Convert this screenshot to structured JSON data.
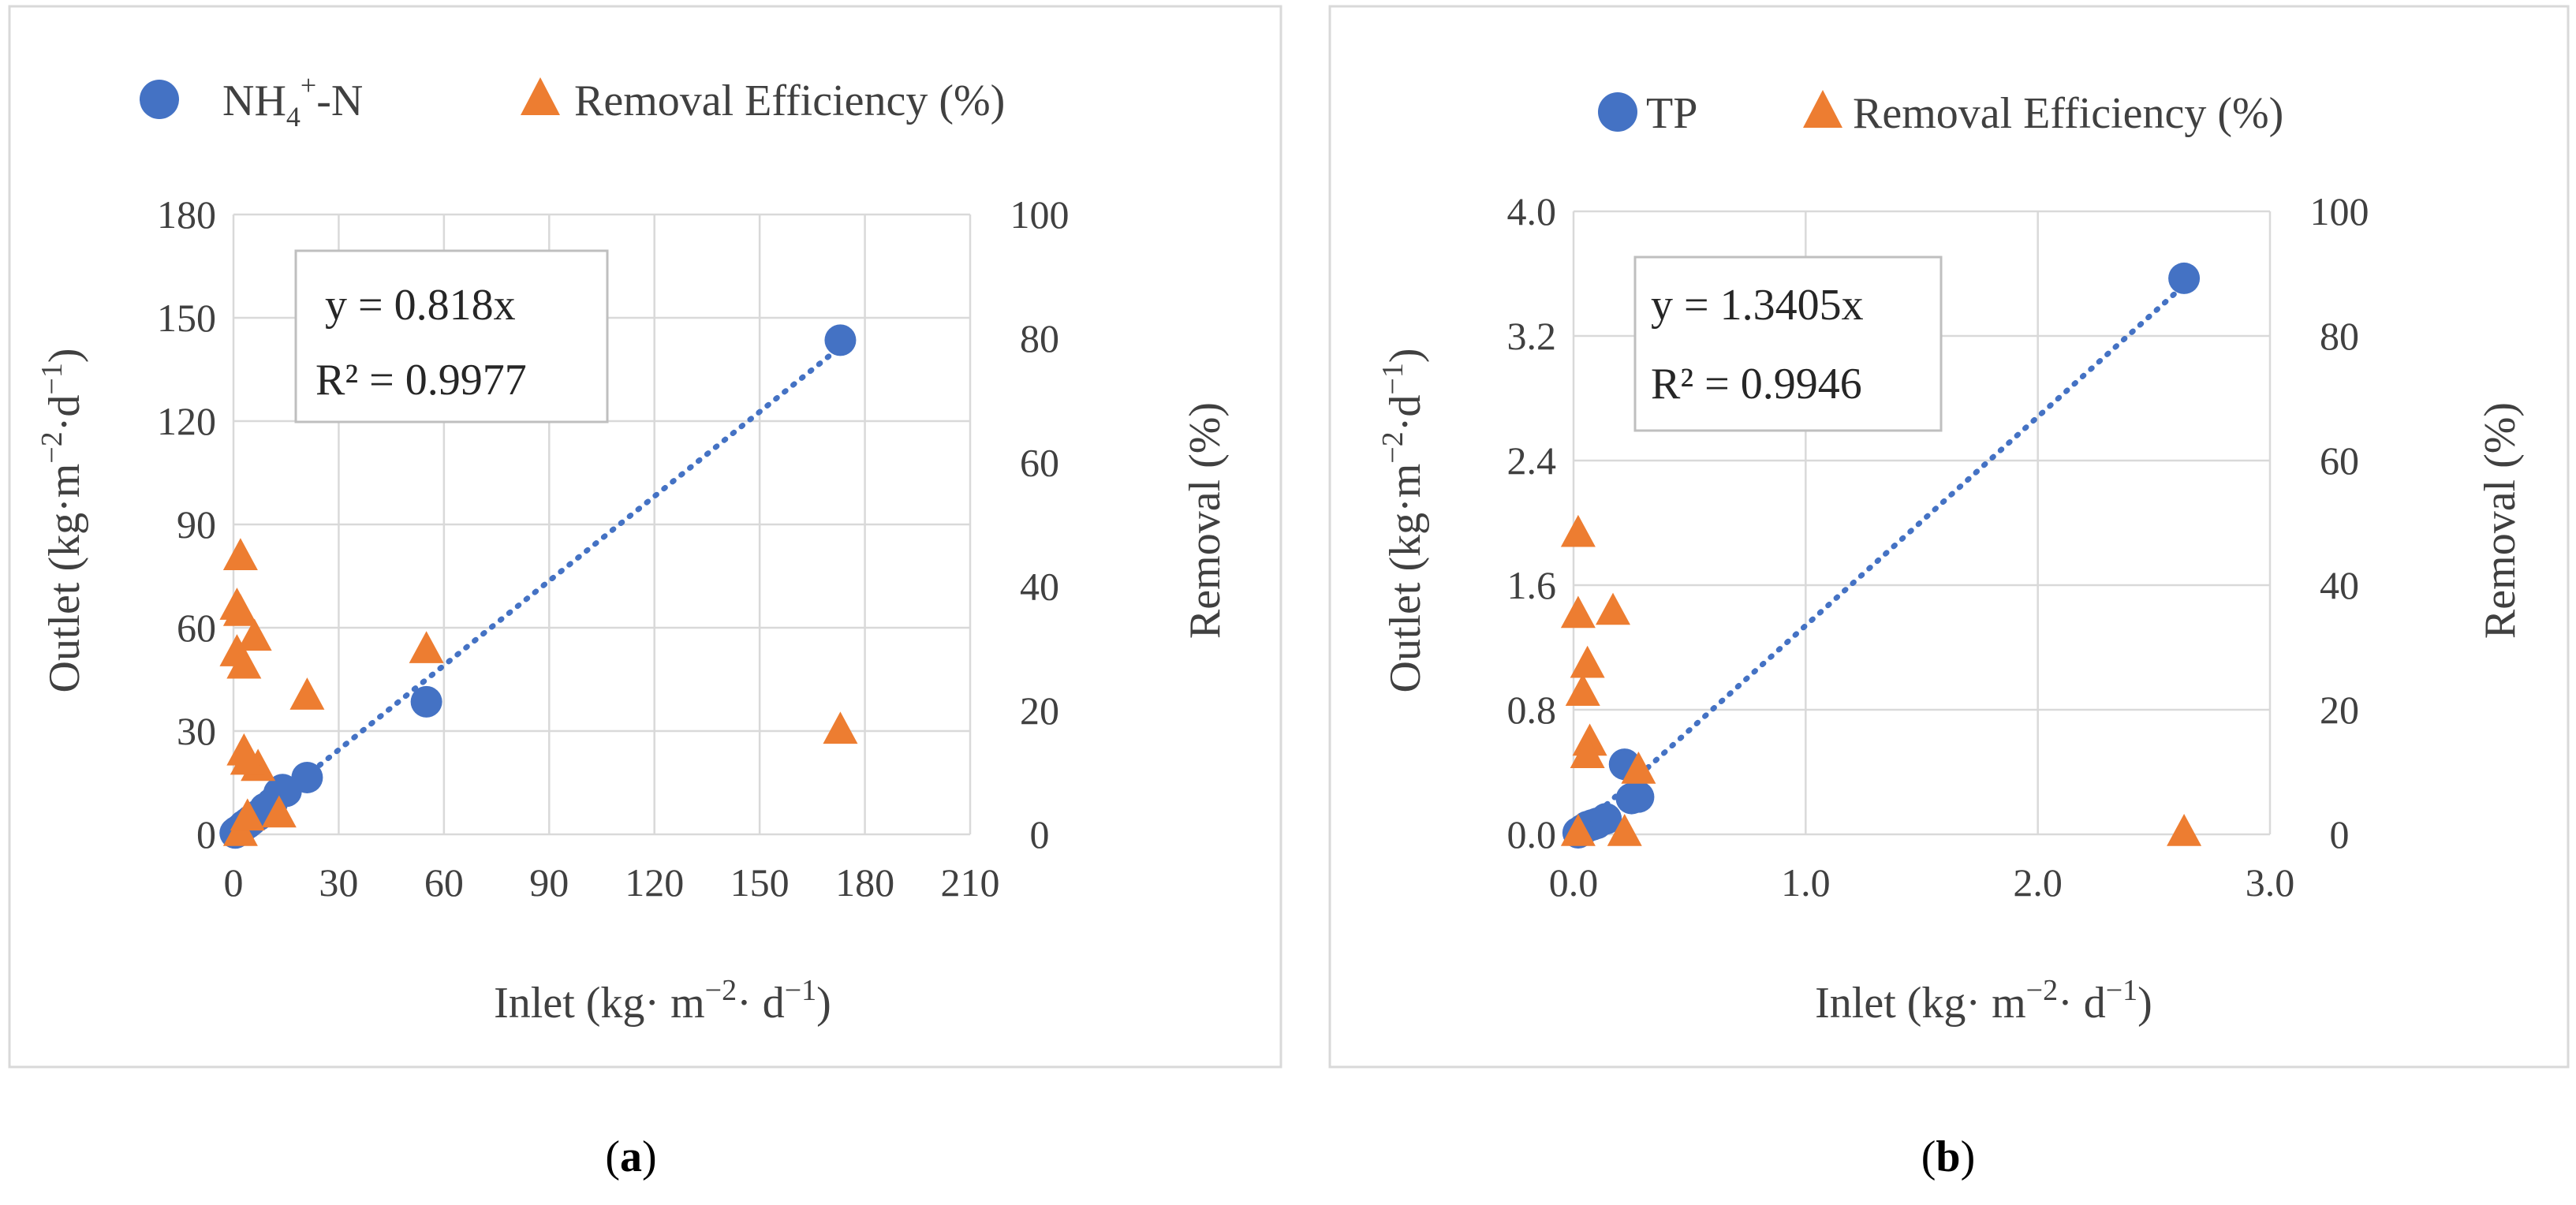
{
  "chart_data": [
    {
      "panel": "a",
      "type": "scatter",
      "caption": {
        "open": "(",
        "letter": "a",
        "close": ")"
      },
      "legend": {
        "series1": {
          "base": "NH",
          "sub": "4",
          "sup": "+",
          "tail": "-N"
        },
        "series2": "Removal Efficiency (%)"
      },
      "colors": {
        "series1": "#4472C4",
        "series2": "#ED7D31",
        "trend": "#4472C4"
      },
      "xlabel": {
        "pre": "Inlet (kg· m",
        "sup1": "−2",
        "mid": "· d",
        "sup2": "−1",
        "post": ")"
      },
      "ylabel": {
        "pre": "Outlet (kg·m",
        "sup1": "−2",
        "mid": "·d",
        "sup2": "−1",
        "post": ")"
      },
      "y2label": "Removal (%)",
      "xlim": [
        0,
        210
      ],
      "ylim": [
        0,
        180
      ],
      "y2lim": [
        0,
        100
      ],
      "xticks": [
        "0",
        "30",
        "60",
        "90",
        "120",
        "150",
        "180",
        "210"
      ],
      "yticks": [
        "0",
        "30",
        "60",
        "90",
        "120",
        "150",
        "180"
      ],
      "y2ticks": [
        "0",
        "20",
        "40",
        "60",
        "80",
        "100"
      ],
      "equation": "y = 0.818x",
      "r2": "R² = 0.9977",
      "trend_slope": 0.818,
      "series": [
        {
          "name": "NH4+-N",
          "axis": "left",
          "marker": "circle",
          "points": [
            [
              0.5,
              0.4
            ],
            [
              1,
              0.8
            ],
            [
              2,
              1.5
            ],
            [
              3,
              2.5
            ],
            [
              4,
              3.2
            ],
            [
              5,
              4
            ],
            [
              7,
              5.5
            ],
            [
              9,
              7.5
            ],
            [
              11,
              9
            ],
            [
              13,
              12
            ],
            [
              14,
              13
            ],
            [
              15,
              12.5
            ],
            [
              21,
              16.5
            ],
            [
              55,
              38.5
            ],
            [
              173,
              143.5
            ]
          ]
        },
        {
          "name": "Removal Efficiency (%)",
          "axis": "right",
          "marker": "triangle",
          "points": [
            [
              2,
              45
            ],
            [
              1,
              37
            ],
            [
              2,
              36
            ],
            [
              1,
              29.5
            ],
            [
              3,
              27.5
            ],
            [
              6,
              32
            ],
            [
              7,
              11
            ],
            [
              3,
              13.5
            ],
            [
              4,
              12
            ],
            [
              2,
              0.5
            ],
            [
              4,
              3
            ],
            [
              13,
              3.5
            ],
            [
              21,
              22.5
            ],
            [
              55,
              30
            ],
            [
              173,
              17
            ]
          ]
        }
      ]
    },
    {
      "panel": "b",
      "type": "scatter",
      "caption": {
        "open": "(",
        "letter": "b",
        "close": ")"
      },
      "legend": {
        "series1": "TP",
        "series2": "Removal Efficiency (%)"
      },
      "colors": {
        "series1": "#4472C4",
        "series2": "#ED7D31",
        "trend": "#4472C4"
      },
      "xlabel": {
        "pre": "Inlet (kg· m",
        "sup1": "−2",
        "mid": "· d",
        "sup2": "−1",
        "post": ")"
      },
      "ylabel": {
        "pre": "Outlet  (kg·m",
        "sup1": "−2",
        "mid": "·d",
        "sup2": "−1",
        "post": ")"
      },
      "y2label": "Removal (%)",
      "xlim": [
        0,
        3.0
      ],
      "ylim": [
        0,
        4.0
      ],
      "y2lim": [
        0,
        100
      ],
      "xticks": [
        "0.0",
        "1.0",
        "2.0",
        "3.0"
      ],
      "yticks": [
        "0.0",
        "0.8",
        "1.6",
        "2.4",
        "3.2",
        "4.0"
      ],
      "y2ticks": [
        "0",
        "20",
        "40",
        "60",
        "80",
        "100"
      ],
      "equation": "y = 1.3405x",
      "r2": "R² = 0.9946",
      "trend_slope": 1.3405,
      "series": [
        {
          "name": "TP",
          "axis": "left",
          "marker": "circle",
          "points": [
            [
              0.02,
              0.01
            ],
            [
              0.04,
              0.03
            ],
            [
              0.06,
              0.05
            ],
            [
              0.08,
              0.06
            ],
            [
              0.1,
              0.07
            ],
            [
              0.14,
              0.1
            ],
            [
              0.22,
              0.45
            ],
            [
              0.25,
              0.23
            ],
            [
              0.28,
              0.24
            ],
            [
              2.63,
              3.57
            ]
          ]
        },
        {
          "name": "Removal Efficiency (%)",
          "axis": "right",
          "marker": "triangle",
          "points": [
            [
              0.02,
              48.5
            ],
            [
              0.02,
              35.5
            ],
            [
              0.17,
              36
            ],
            [
              0.06,
              27.5
            ],
            [
              0.04,
              23
            ],
            [
              0.07,
              15
            ],
            [
              0.06,
              13
            ],
            [
              0.28,
              10.5
            ],
            [
              0.02,
              0.5
            ],
            [
              0.22,
              0.5
            ],
            [
              2.63,
              0.5
            ]
          ]
        }
      ]
    }
  ]
}
